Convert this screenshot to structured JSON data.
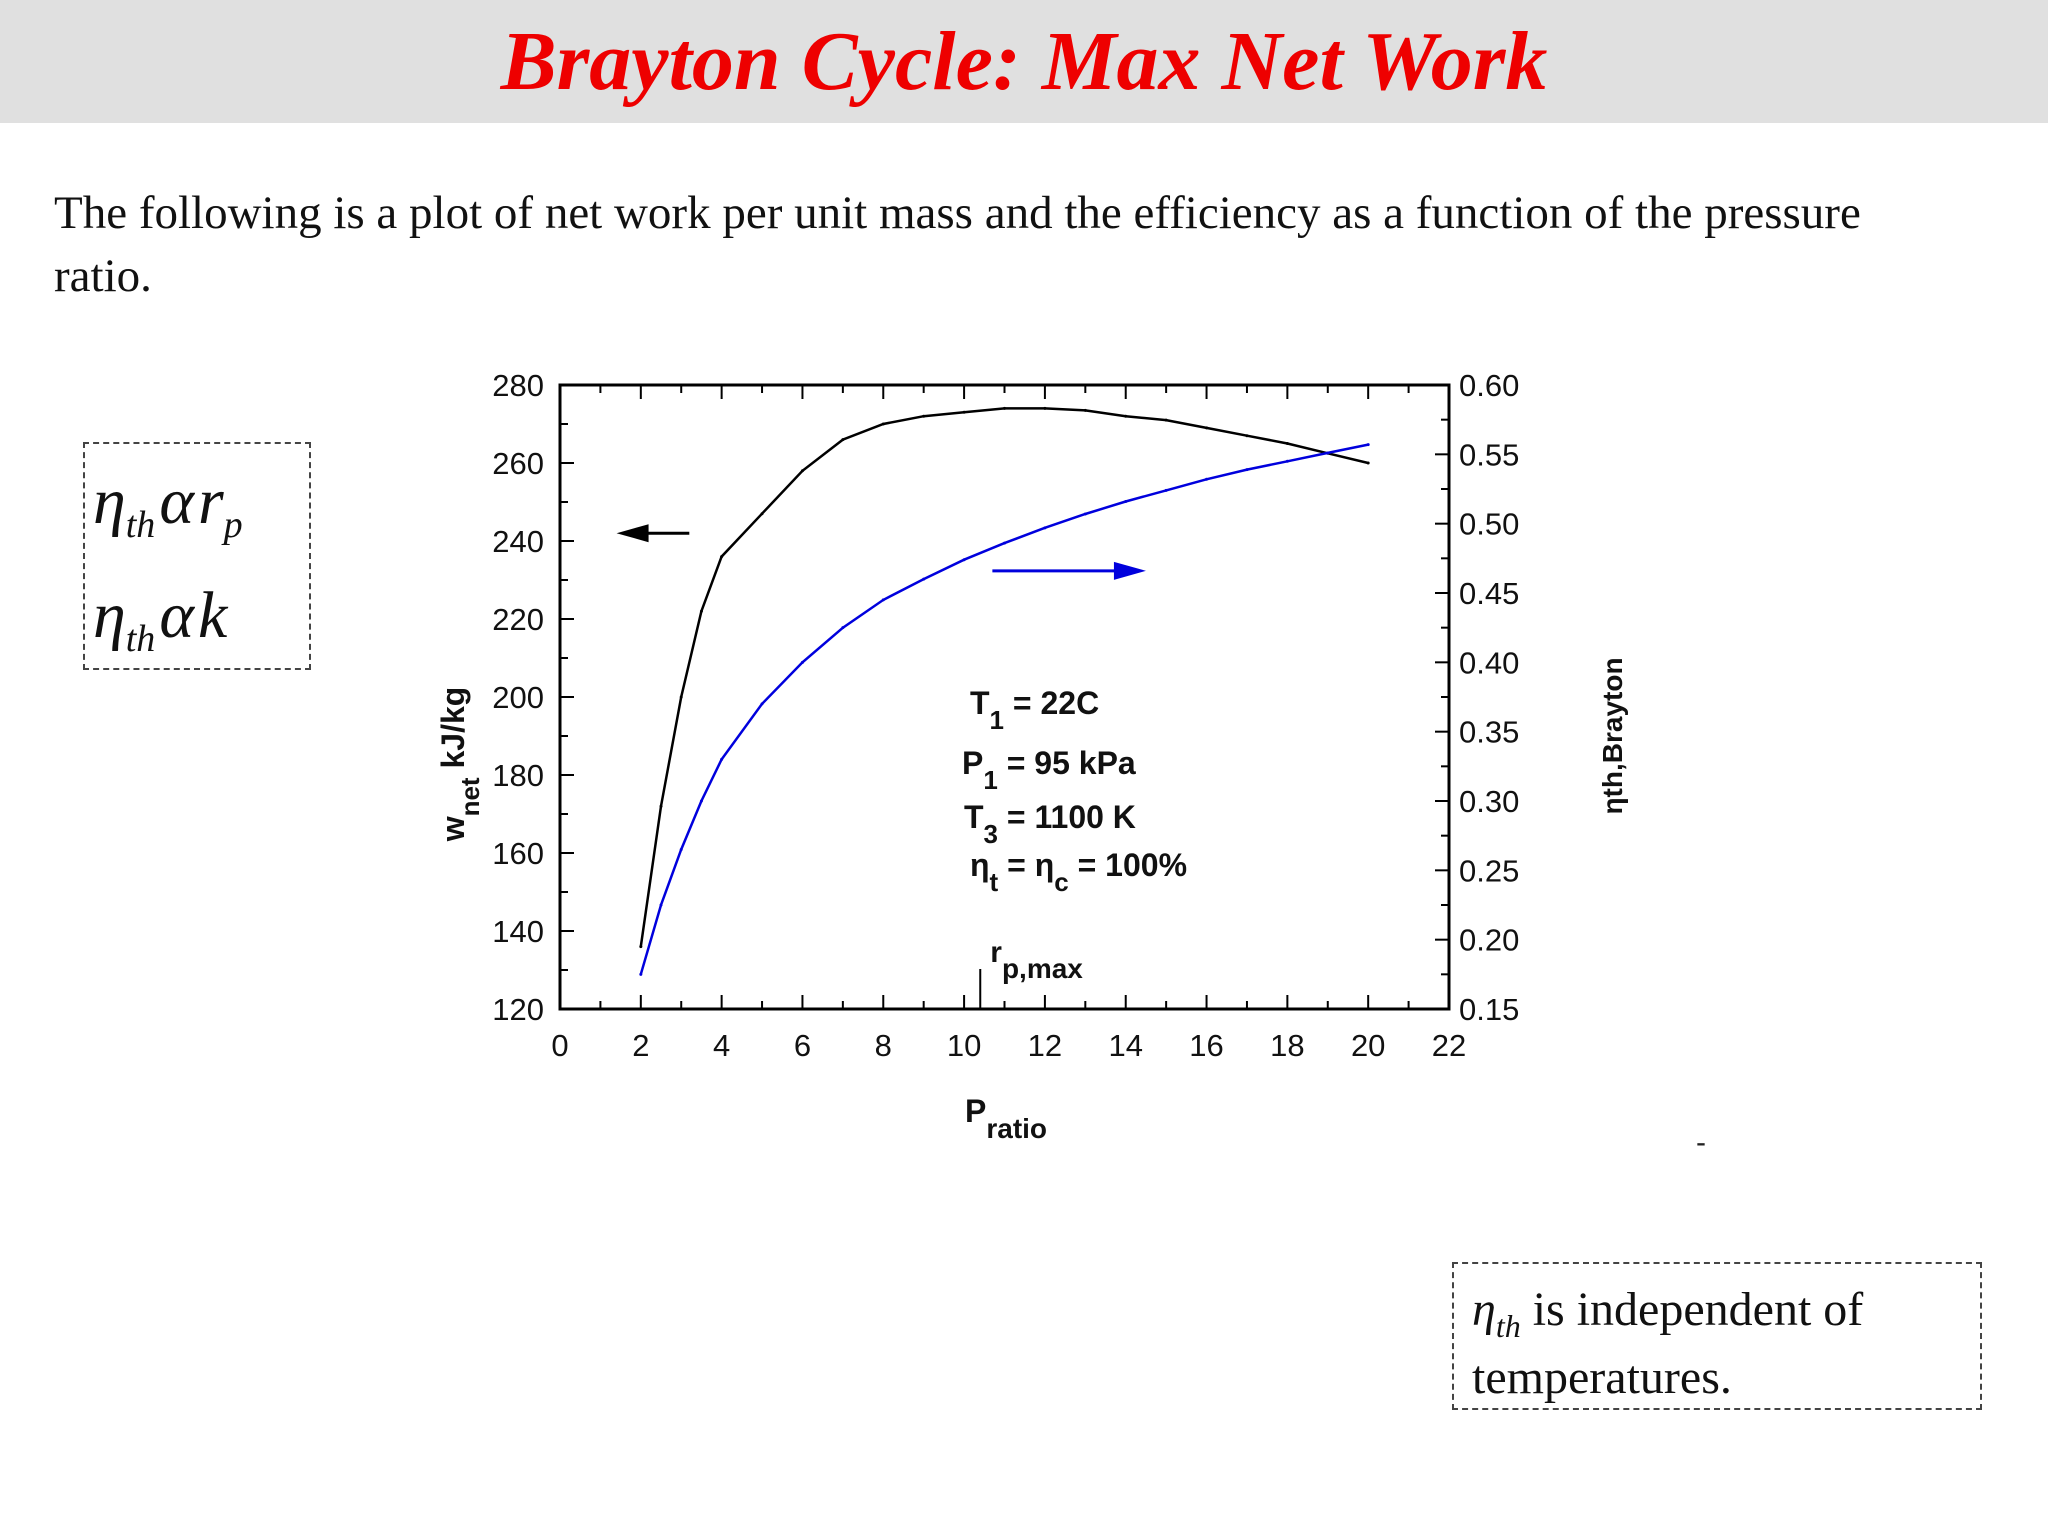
{
  "slide": {
    "title": "Brayton Cycle: Max Net Work",
    "intro": "The following is a plot of net work per unit mass and the efficiency as a function of the pressure ratio.",
    "eta_symbol": "η",
    "th_sub": "th",
    "alpha_symbol": "α",
    "r_symbol": "r",
    "p_sub": "p",
    "k_symbol": "k",
    "note_text_1": "is independent of",
    "note_text_2": "temperatures.",
    "dash": "-"
  },
  "chart_data": {
    "type": "line",
    "xlabel": "P",
    "xlabel_sub": "ratio",
    "ylabel": "w",
    "ylabel_sub": "net",
    "ylabel_unit": "kJ/kg",
    "y2label": "ηth,Brayton",
    "xlim": [
      0,
      22
    ],
    "ylim": [
      120,
      280
    ],
    "y2lim": [
      0.15,
      0.6
    ],
    "xticks": [
      0,
      2,
      4,
      6,
      8,
      10,
      12,
      14,
      16,
      18,
      20,
      22
    ],
    "yticks": [
      120,
      140,
      160,
      180,
      200,
      220,
      240,
      260,
      280
    ],
    "y2ticks": [
      "0.15",
      "0.20",
      "0.25",
      "0.30",
      "0.35",
      "0.40",
      "0.45",
      "0.50",
      "0.55",
      "0.60"
    ],
    "series": [
      {
        "axis": "left",
        "color": "#000000",
        "x": [
          2,
          2.5,
          3,
          3.5,
          4,
          5,
          6,
          7,
          8,
          9,
          10,
          11,
          12,
          13,
          14,
          15,
          16,
          17,
          18,
          19,
          20
        ],
        "y": [
          136,
          172,
          200,
          222,
          236,
          247,
          258,
          266,
          270,
          272,
          273,
          274,
          274,
          273.5,
          272,
          271,
          269,
          267,
          265,
          262.5,
          260
        ]
      },
      {
        "axis": "right",
        "color": "#0000dd",
        "x": [
          2,
          2.5,
          3,
          3.5,
          4,
          5,
          6,
          7,
          8,
          9,
          10,
          11,
          12,
          13,
          14,
          15,
          16,
          17,
          18,
          19,
          20
        ],
        "y": [
          0.175,
          0.225,
          0.265,
          0.3,
          0.33,
          0.37,
          0.4,
          0.425,
          0.445,
          0.46,
          0.474,
          0.486,
          0.497,
          0.507,
          0.516,
          0.524,
          0.532,
          0.539,
          0.545,
          0.551,
          0.557
        ]
      }
    ],
    "annotations": {
      "t1_label": "T",
      "t1_sub": "1",
      "t1_value": "= 22C",
      "p1_label": "P",
      "p1_sub": "1",
      "p1_value": "= 95 kPa",
      "t3_label": "T",
      "t3_sub": "3",
      "t3_value": "= 1100 K",
      "eta_label": "η",
      "eta_t_sub": "t",
      "eta_eq": "= η",
      "eta_c_sub": "c",
      "eta_value": "= 100%",
      "rp_label": "r",
      "rp_sub": "p,max",
      "rp_x": 10.4
    },
    "arrows": [
      {
        "axis": "left",
        "direction": "left",
        "color": "#000000",
        "x_from": 3.2,
        "x_to": 1.4,
        "y": 242
      },
      {
        "axis": "right",
        "direction": "right",
        "color": "#0000dd",
        "x_from": 10.7,
        "x_to": 14.5,
        "y": 0.466
      }
    ]
  }
}
